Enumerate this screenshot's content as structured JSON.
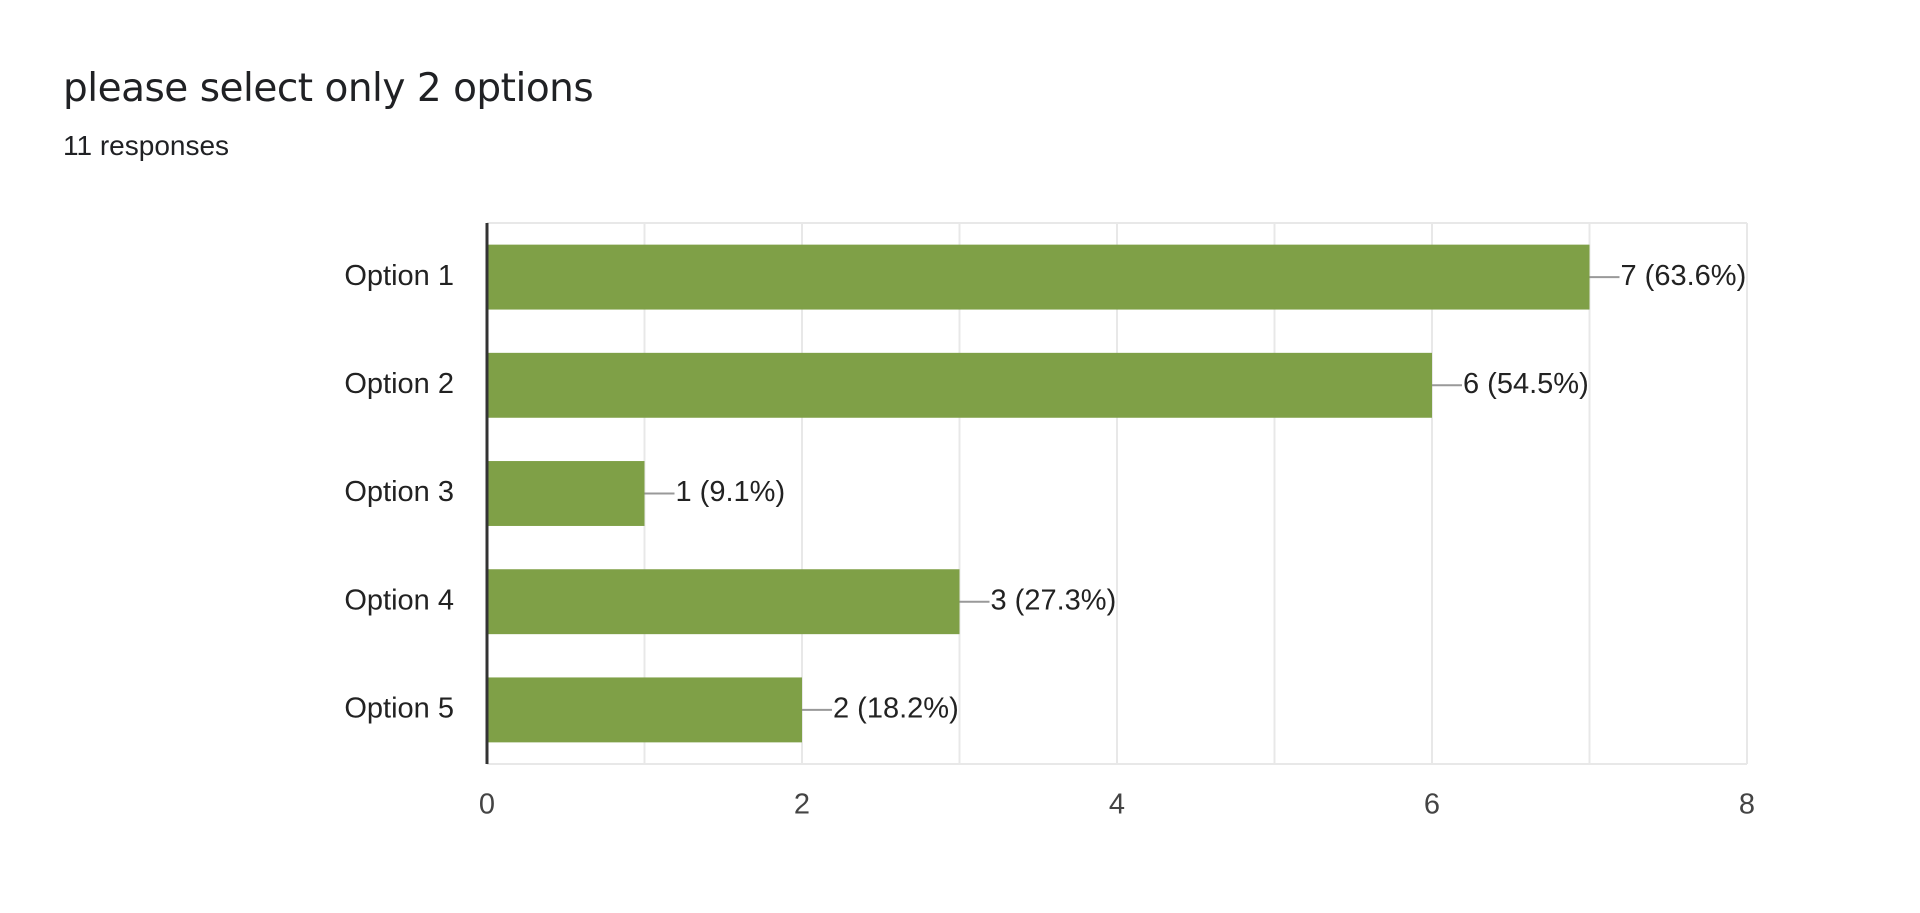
{
  "header": {
    "title": "please select only 2 options",
    "subtitle": "11 responses"
  },
  "colors": {
    "bar": "#7fa047",
    "grid": "#e8e8e8",
    "axis": "#333333",
    "leader": "#999999"
  },
  "chart_data": {
    "type": "bar",
    "orientation": "horizontal",
    "categories": [
      "Option 1",
      "Option 2",
      "Option 3",
      "Option 4",
      "Option 5"
    ],
    "values": [
      7,
      6,
      1,
      3,
      2
    ],
    "value_labels": [
      "7 (63.6%)",
      "6 (54.5%)",
      "1 (9.1%)",
      "3 (27.3%)",
      "2 (18.2%)"
    ],
    "xlim": [
      0,
      8
    ],
    "x_ticks": [
      0,
      2,
      4,
      6,
      8
    ],
    "grid_step": 1,
    "grid": true,
    "legend": "none"
  }
}
